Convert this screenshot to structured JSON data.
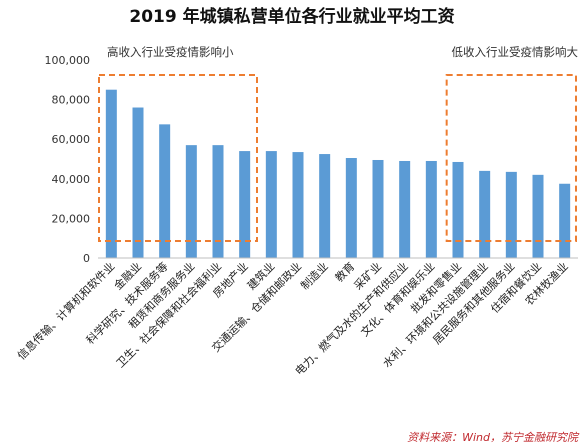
{
  "chart_data": {
    "type": "bar",
    "title": "2019 年城镇私营单位各行业就业平均工资",
    "categories": [
      "信息传输、计算机和软件业",
      "金融业",
      "科学研究、技术服务等",
      "租赁和商务服务业",
      "卫生、社会保障和社会福利业",
      "房地产业",
      "建筑业",
      "交通运输、仓储和邮政业",
      "制造业",
      "教育",
      "采矿业",
      "电力、燃气及水的生产和供应业",
      "文化、体育和娱乐业",
      "批发和零售业",
      "水利、环境和公共设施管理业",
      "居民服务和其他服务业",
      "住宿和餐饮业",
      "农林牧渔业"
    ],
    "values": [
      85000,
      76000,
      67500,
      57000,
      57000,
      54000,
      54000,
      53500,
      52500,
      50500,
      49500,
      49000,
      49000,
      48500,
      44000,
      43500,
      42000,
      37500
    ],
    "ylim": [
      0,
      100000
    ],
    "yticks": [
      "0",
      "20,000",
      "40,000",
      "60,000",
      "80,000",
      "100,000"
    ],
    "ytick_values": [
      0,
      20000,
      40000,
      60000,
      80000,
      100000
    ],
    "bar_color": "#5b9bd5",
    "grid": false,
    "annotations": [
      {
        "text": "高收入行业受疫情影响小",
        "box_color": "#ed7d31",
        "box_style": "dashed"
      },
      {
        "text": "低收入行业受疫情影响大",
        "box_color": "#ed7d31",
        "box_style": "dashed"
      }
    ],
    "source": "资料来源：Wind，苏宁金融研究院"
  }
}
